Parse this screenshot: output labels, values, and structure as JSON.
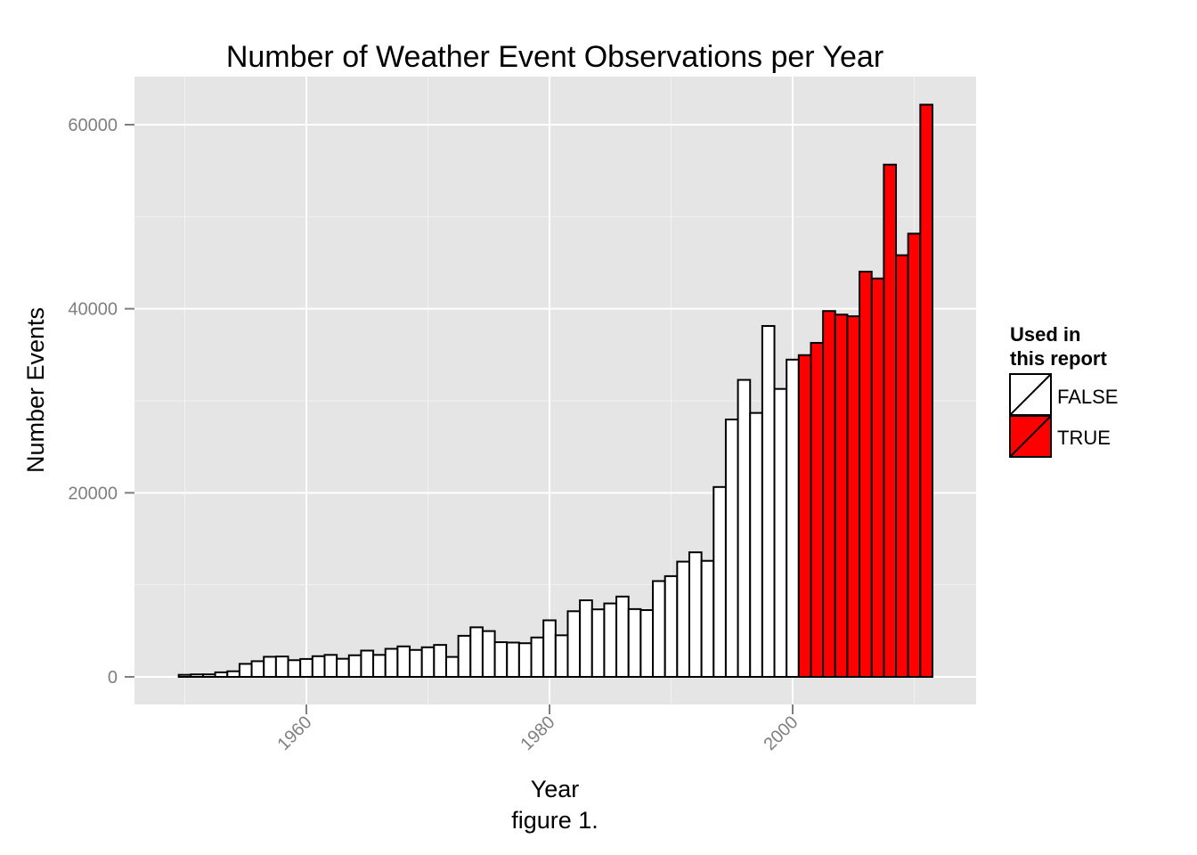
{
  "chart_data": {
    "type": "bar",
    "title": "Number of Weather Event Observations per Year",
    "xlabel": "Year",
    "ylabel": "Number Events",
    "caption": "figure 1.",
    "xlim": [
      1949,
      2012
    ],
    "ylim": [
      0,
      62174
    ],
    "x_ticks": [
      1960,
      1980,
      2000
    ],
    "x_tick_labels": [
      "1960",
      "1980",
      "2000"
    ],
    "y_ticks": [
      0,
      20000,
      40000,
      60000
    ],
    "y_tick_labels": [
      "0",
      "20000",
      "40000",
      "60000"
    ],
    "grid": true,
    "legend": {
      "title": "Used in\nthis report",
      "title_lines": [
        "Used in",
        "this report"
      ],
      "position": "right",
      "entries": [
        {
          "label": "FALSE",
          "color": "#ffffff"
        },
        {
          "label": "TRUE",
          "color": "#ff0000"
        }
      ]
    },
    "colors": {
      "FALSE": "#ffffff",
      "TRUE": "#ff0000",
      "panel": "#e5e5e5",
      "grid": "#ffffff"
    },
    "x": [
      1950,
      1951,
      1952,
      1953,
      1954,
      1955,
      1956,
      1957,
      1958,
      1959,
      1960,
      1961,
      1962,
      1963,
      1964,
      1965,
      1966,
      1967,
      1968,
      1969,
      1970,
      1971,
      1972,
      1973,
      1974,
      1975,
      1976,
      1977,
      1978,
      1979,
      1980,
      1981,
      1982,
      1983,
      1984,
      1985,
      1986,
      1987,
      1988,
      1989,
      1990,
      1991,
      1992,
      1993,
      1994,
      1995,
      1996,
      1997,
      1998,
      1999,
      2000,
      2001,
      2002,
      2003,
      2004,
      2005,
      2006,
      2007,
      2008,
      2009,
      2010,
      2011
    ],
    "values": [
      223,
      269,
      272,
      492,
      609,
      1413,
      1703,
      2184,
      2213,
      1813,
      1945,
      2246,
      2389,
      1968,
      2348,
      2855,
      2388,
      3049,
      3312,
      2926,
      3215,
      3471,
      2168,
      4463,
      5386,
      4975,
      3768,
      3728,
      3657,
      4279,
      6146,
      4517,
      7132,
      8322,
      7335,
      7979,
      8726,
      7367,
      7257,
      10410,
      10946,
      12522,
      13534,
      12607,
      20631,
      27970,
      32270,
      28680,
      38128,
      31289,
      34471,
      34962,
      36293,
      39752,
      39363,
      39184,
      44034,
      43289,
      55663,
      45817,
      48161,
      62174
    ],
    "used_in_report": [
      false,
      false,
      false,
      false,
      false,
      false,
      false,
      false,
      false,
      false,
      false,
      false,
      false,
      false,
      false,
      false,
      false,
      false,
      false,
      false,
      false,
      false,
      false,
      false,
      false,
      false,
      false,
      false,
      false,
      false,
      false,
      false,
      false,
      false,
      false,
      false,
      false,
      false,
      false,
      false,
      false,
      false,
      false,
      false,
      false,
      false,
      false,
      false,
      false,
      false,
      false,
      true,
      true,
      true,
      true,
      true,
      true,
      true,
      true,
      true,
      true,
      true
    ]
  }
}
